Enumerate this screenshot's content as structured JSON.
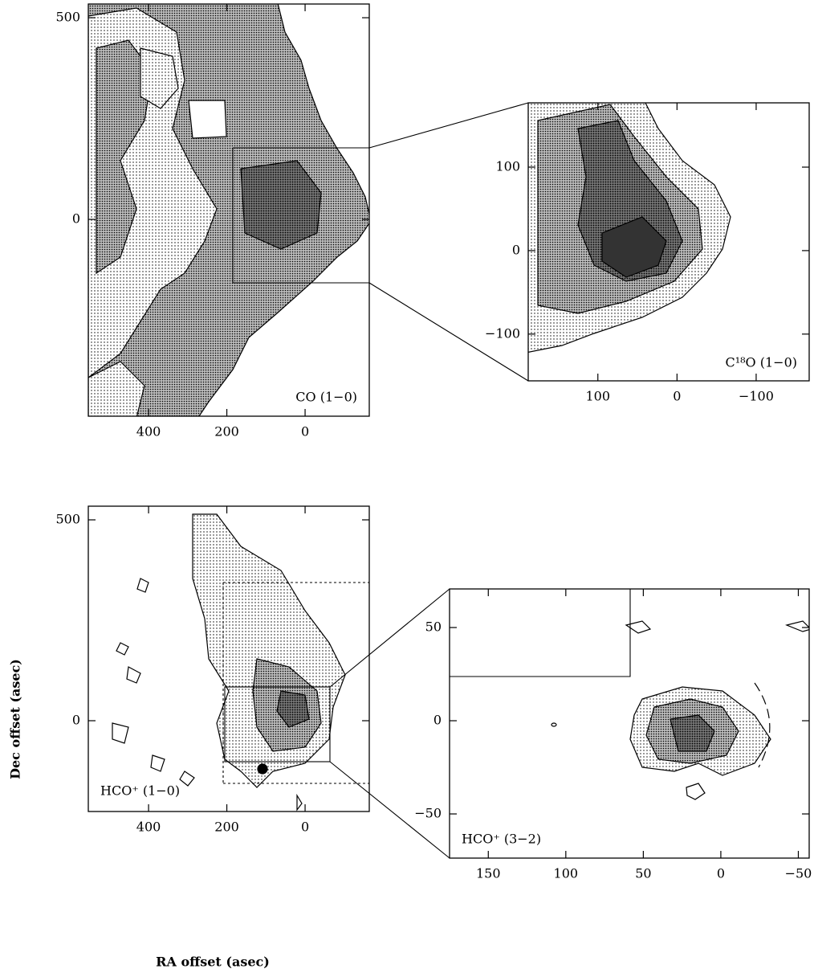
{
  "chart_data": [
    {
      "type": "contour",
      "annotation": "CO (1−0)",
      "xlim": [
        554,
        -164
      ],
      "ylim": [
        -488,
        534
      ],
      "xticks": [
        400,
        200,
        0
      ],
      "yticks": [
        500,
        0
      ]
    },
    {
      "type": "contour",
      "annotation": "C¹⁸O (1−0)",
      "xlim": [
        188,
        -167
      ],
      "ylim": [
        -156,
        177
      ],
      "xticks": [
        100,
        0,
        {
          "value": -100,
          "label": "−100"
        }
      ],
      "yticks": [
        100,
        0,
        {
          "value": -100,
          "label": "−100"
        }
      ]
    },
    {
      "type": "contour",
      "annotation": "HCO⁺ (1−0)",
      "x_label": "RA offset (asec)",
      "y_label": "Dec offset (asec)",
      "xlim": [
        554,
        -164
      ],
      "ylim": [
        -226,
        534
      ],
      "xticks": [
        400,
        200,
        0
      ],
      "yticks": [
        500,
        0
      ]
    },
    {
      "type": "contour",
      "annotation": "HCO⁺ (3−2)",
      "xlim": [
        175,
        -57
      ],
      "ylim": [
        -73.7,
        70.7
      ],
      "xticks": [
        150,
        100,
        50,
        0,
        {
          "value": -50,
          "label": "−50"
        }
      ],
      "yticks": [
        50,
        0,
        {
          "value": -50,
          "label": "−50"
        }
      ]
    }
  ]
}
